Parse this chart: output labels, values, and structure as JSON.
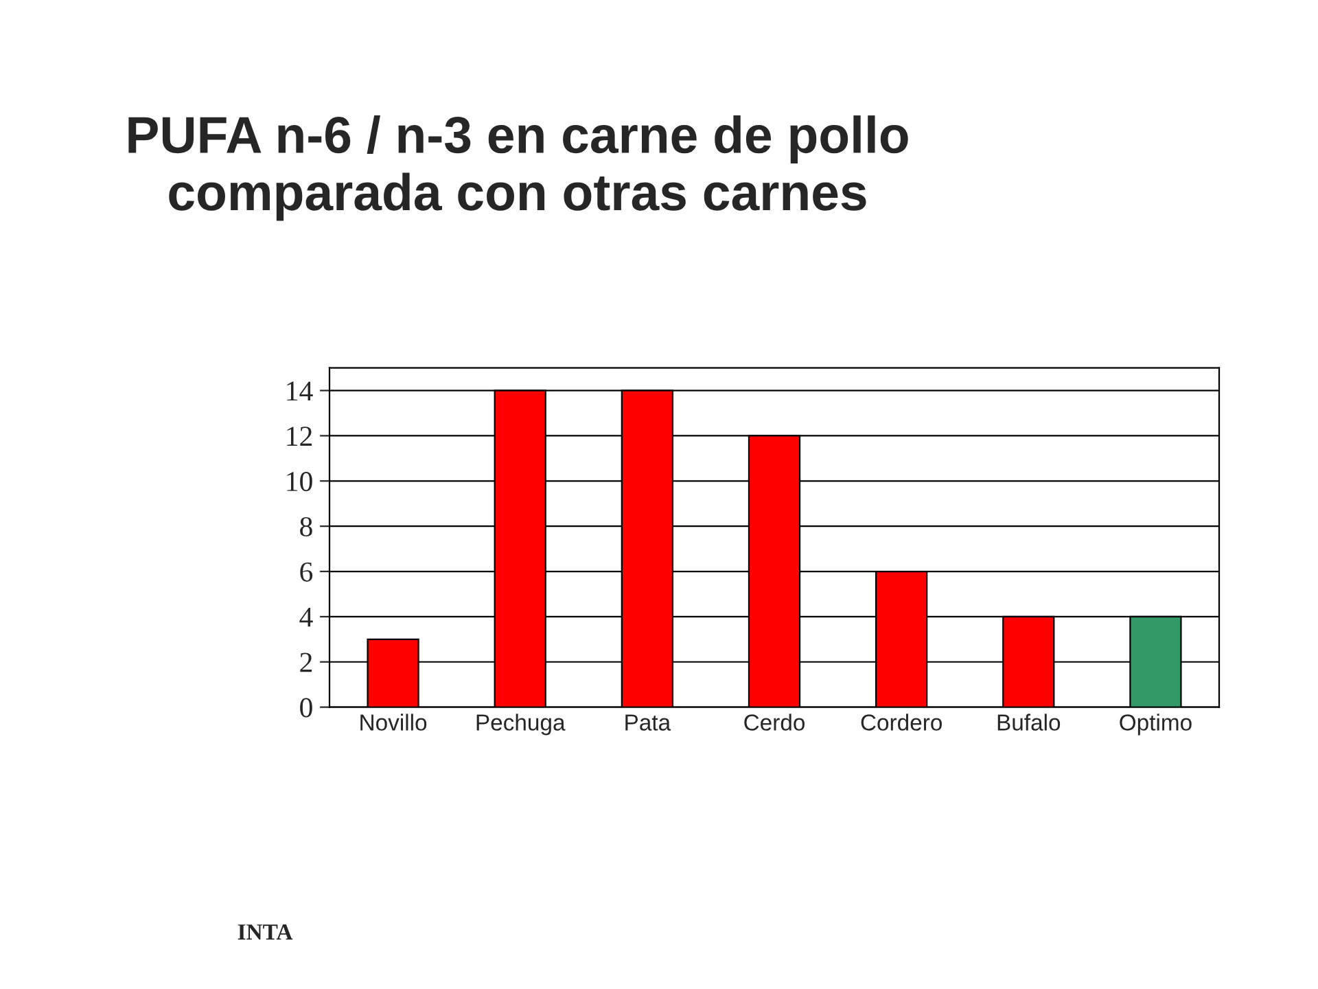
{
  "chart_data": {
    "type": "bar",
    "title": "PUFA n-6 / n-3 en carne de pollo\ncomparada con otras carnes",
    "categories": [
      "Novillo",
      "Pechuga",
      "Pata",
      "Cerdo",
      "Cordero",
      "Bufalo",
      "Optimo"
    ],
    "values": [
      3,
      14,
      14,
      12,
      6,
      4,
      4
    ],
    "colors": [
      "#ff0000",
      "#ff0000",
      "#ff0000",
      "#ff0000",
      "#ff0000",
      "#ff0000",
      "#339966"
    ],
    "ylim": [
      0,
      15
    ],
    "yticks": [
      0,
      2,
      4,
      6,
      8,
      10,
      12,
      14
    ],
    "grid": "y",
    "annotations": [
      "INTA"
    ]
  }
}
